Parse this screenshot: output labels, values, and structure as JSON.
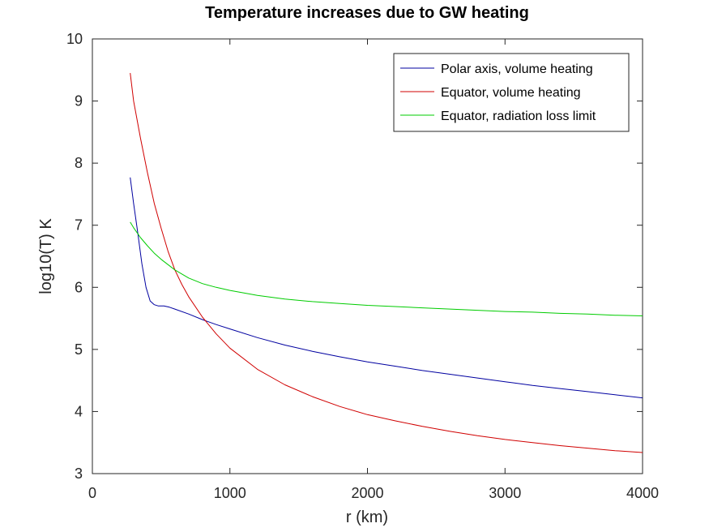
{
  "chart_data": {
    "type": "line",
    "title": "Temperature increases due to GW heating",
    "xlabel": "r (km)",
    "ylabel": "log10(T) K",
    "xlim": [
      0,
      4000
    ],
    "ylim": [
      3,
      10
    ],
    "xticks": [
      0,
      1000,
      2000,
      3000,
      4000
    ],
    "yticks": [
      3,
      4,
      5,
      6,
      7,
      8,
      9,
      10
    ],
    "grid": false,
    "legend_position": "top-right",
    "series": [
      {
        "name": "Polar axis, volume heating",
        "color": "#0000a0",
        "x": [
          275,
          300,
          330,
          360,
          390,
          420,
          450,
          480,
          520,
          560,
          600,
          700,
          800,
          900,
          1000,
          1200,
          1400,
          1600,
          1800,
          2000,
          2200,
          2400,
          2600,
          2800,
          3000,
          3200,
          3400,
          3600,
          3800,
          4000
        ],
        "y": [
          7.77,
          7.35,
          6.88,
          6.38,
          6.0,
          5.78,
          5.72,
          5.7,
          5.7,
          5.68,
          5.65,
          5.57,
          5.48,
          5.4,
          5.33,
          5.19,
          5.07,
          4.97,
          4.88,
          4.8,
          4.73,
          4.66,
          4.6,
          4.54,
          4.48,
          4.42,
          4.37,
          4.32,
          4.27,
          4.22
        ]
      },
      {
        "name": "Equator, volume heating",
        "color": "#d00000",
        "x": [
          275,
          300,
          350,
          400,
          450,
          500,
          550,
          600,
          650,
          700,
          800,
          900,
          1000,
          1200,
          1400,
          1600,
          1800,
          2000,
          2200,
          2400,
          2600,
          2800,
          3000,
          3200,
          3400,
          3600,
          3800,
          4000
        ],
        "y": [
          9.45,
          9.0,
          8.4,
          7.85,
          7.35,
          6.95,
          6.58,
          6.28,
          6.05,
          5.85,
          5.52,
          5.25,
          5.02,
          4.68,
          4.43,
          4.24,
          4.08,
          3.95,
          3.85,
          3.76,
          3.68,
          3.61,
          3.55,
          3.5,
          3.45,
          3.41,
          3.37,
          3.34
        ]
      },
      {
        "name": "Equator, radiation loss limit",
        "color": "#00cc00",
        "x": [
          275,
          300,
          350,
          400,
          450,
          500,
          600,
          700,
          800,
          900,
          1000,
          1200,
          1400,
          1600,
          1800,
          2000,
          2200,
          2400,
          2600,
          2800,
          3000,
          3200,
          3400,
          3600,
          3800,
          4000
        ],
        "y": [
          7.05,
          6.96,
          6.8,
          6.67,
          6.55,
          6.45,
          6.28,
          6.15,
          6.06,
          6.0,
          5.95,
          5.87,
          5.81,
          5.77,
          5.74,
          5.71,
          5.69,
          5.67,
          5.65,
          5.63,
          5.61,
          5.6,
          5.58,
          5.57,
          5.55,
          5.54
        ]
      }
    ]
  }
}
